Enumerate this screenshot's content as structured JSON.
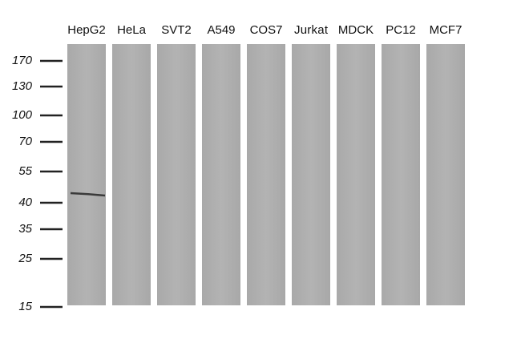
{
  "lanes": [
    "HepG2",
    "HeLa",
    "SVT2",
    "A549",
    "COS7",
    "Jurkat",
    "MDCK",
    "PC12",
    "MCF7"
  ],
  "markers": [
    "170",
    "130",
    "100",
    "70",
    "55",
    "40",
    "35",
    "25",
    "15"
  ]
}
